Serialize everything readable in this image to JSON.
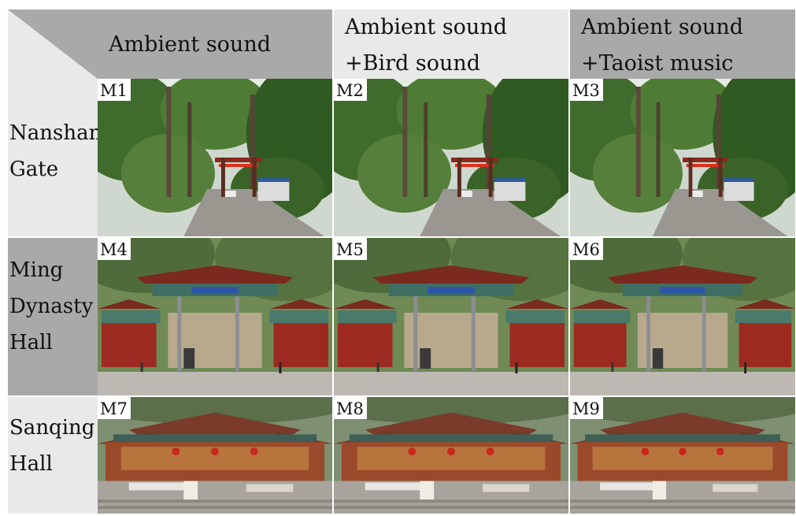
{
  "header": {
    "col1": [
      "Ambient sound"
    ],
    "col2": [
      "Ambient sound",
      "+Bird sound"
    ],
    "col3": [
      "Ambient sound",
      "+Taoist music"
    ]
  },
  "rows": [
    {
      "label": [
        "Nanshan",
        "Gate"
      ],
      "cells": [
        "M1",
        "M2",
        "M3"
      ]
    },
    {
      "label": [
        "Ming",
        "Dynasty",
        "Hall"
      ],
      "cells": [
        "M4",
        "M5",
        "M6"
      ]
    },
    {
      "label": [
        "Sanqing",
        "Hall"
      ],
      "cells": [
        "M7",
        "M8",
        "M9"
      ]
    }
  ],
  "images": {
    "nanshan_gate": "forest path with red torii-style gate and parked car",
    "ming_dynasty_hall": "ornate temple gateway with blue plaque, stone wall and pedestrians",
    "sanqing_hall": "multi-eave temple hall with red lanterns above stone stairs"
  },
  "colors": {
    "dark_gray": "#a9a9a9",
    "light_gray": "#e9e9e9"
  }
}
